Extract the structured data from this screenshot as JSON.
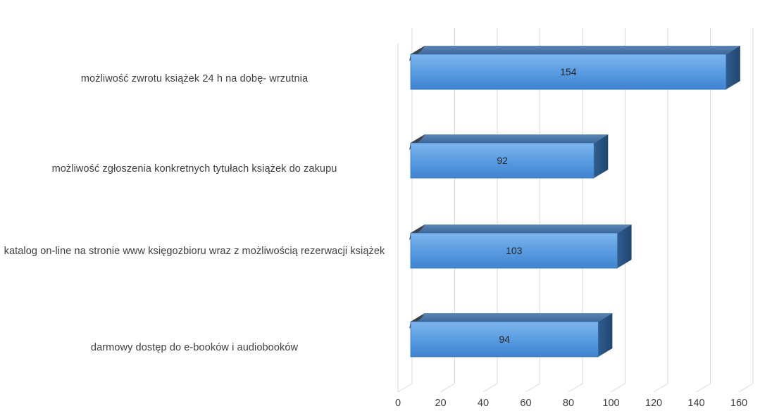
{
  "chart_data": {
    "type": "bar",
    "orientation": "horizontal",
    "style": "3d",
    "categories": [
      "możliwość zwrotu książek 24 h na dobę- wrzutnia",
      "możliwość zgłoszenia konkretnych tytułach książek do zakupu",
      "katalog on-line na stronie www księgozbioru wraz z możliwością rezerwacji książek",
      "darmowy dostęp do e-booków i audiobooków"
    ],
    "values": [
      154,
      92,
      103,
      94
    ],
    "data_labels": [
      "154",
      "92",
      "103",
      "94"
    ],
    "xlim": [
      0,
      160
    ],
    "x_ticks": [
      "0",
      "20",
      "40",
      "60",
      "80",
      "100",
      "120",
      "140",
      "160"
    ],
    "grid": true,
    "title": "",
    "xlabel": "",
    "ylabel": "",
    "colors": {
      "bar_front": "#4a90d9",
      "bar_top": "#3c6a9e",
      "bar_side": "#2a5580",
      "gridline": "#d9d9d9"
    }
  }
}
